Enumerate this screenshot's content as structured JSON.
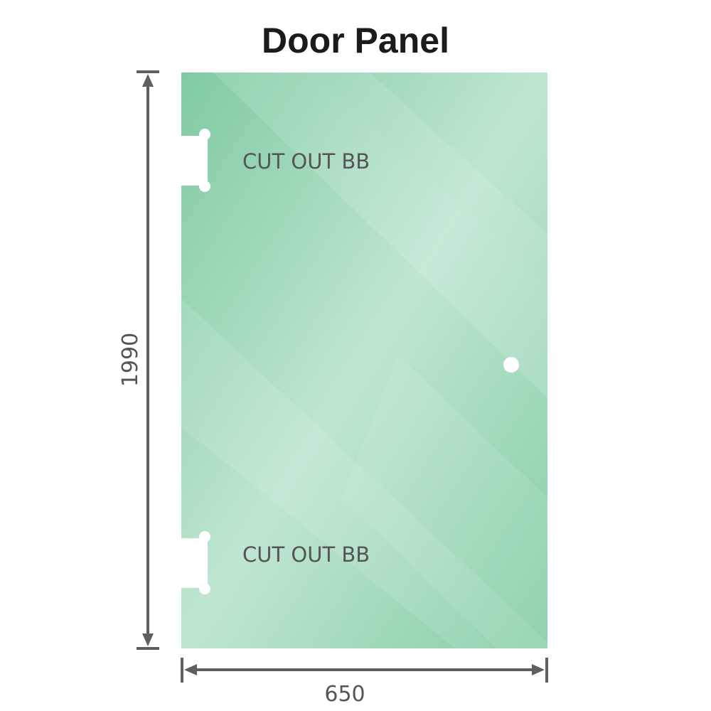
{
  "title": "Door Panel",
  "cutout_top_label": "CUT OUT BB",
  "cutout_bottom_label": "CUT OUT BB",
  "height_dimension": "1990",
  "width_dimension": "650",
  "colors": {
    "glass": "#8fd1ad",
    "glass_light": "#bde6d0",
    "dimension_line": "#5f5f5f"
  }
}
